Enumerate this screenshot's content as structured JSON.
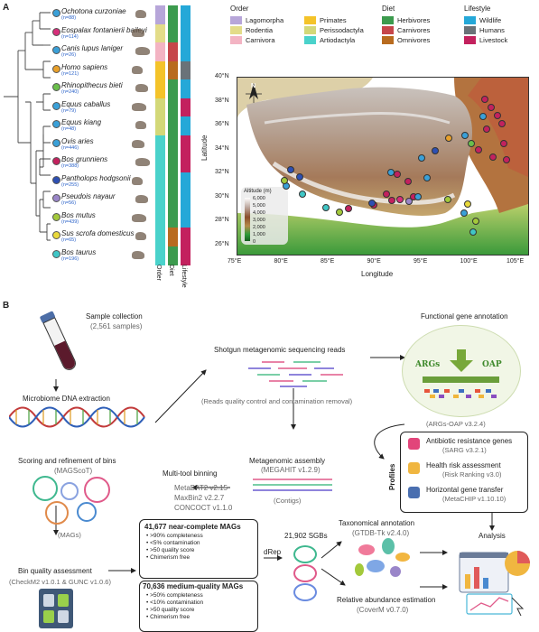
{
  "panelA": {
    "letter": "A",
    "species": [
      {
        "name": "Ochotona curzoniae",
        "count": "(n=88)",
        "order": "#b7a6d9",
        "diet": "#3c9b4e",
        "life": "#25a8d8",
        "dot": "#3aa0d8"
      },
      {
        "name": "Eospalax fontanierii baileyi",
        "count": "(n=114)",
        "order": "#e3dc89",
        "diet": "#3c9b4e",
        "life": "#25a8d8",
        "dot": "#d62f7a"
      },
      {
        "name": "Canis lupus laniger",
        "count": "(n=26)",
        "order": "#f3b4c3",
        "diet": "#c6464a",
        "life": "#25a8d8",
        "dot": "#3aa0d8"
      },
      {
        "name": "Homo sapiens",
        "count": "(n=121)",
        "order": "#f4c329",
        "diet": "#b86b1f",
        "life": "#6a7278",
        "dot": "#e8a02b"
      },
      {
        "name": "Rhinopithecus bieti",
        "count": "(n=240)",
        "order": "#f4c329",
        "diet": "#3c9b4e",
        "life": "#25a8d8",
        "dot": "#6abf4b"
      },
      {
        "name": "Equus caballus",
        "count": "(n=79)",
        "order": "#d3d878",
        "diet": "#3c9b4e",
        "life": "#c3215e",
        "dot": "#3aa0d8"
      },
      {
        "name": "Equus kiang",
        "count": "(n=48)",
        "order": "#d3d878",
        "diet": "#3c9b4e",
        "life": "#25a8d8",
        "dot": "#3aa0d8"
      },
      {
        "name": "Ovis aries",
        "count": "(n=446)",
        "order": "#4ad2cb",
        "diet": "#3c9b4e",
        "life": "#c3215e",
        "dot": "#3aa0d8"
      },
      {
        "name": "Bos grunniens",
        "count": "(n=388)",
        "order": "#4ad2cb",
        "diet": "#3c9b4e",
        "life": "#c3215e",
        "dot": "#c3215e"
      },
      {
        "name": "Pantholops hodgsonii",
        "count": "(n=255)",
        "order": "#4ad2cb",
        "diet": "#3c9b4e",
        "life": "#25a8d8",
        "dot": "#2d4fb3"
      },
      {
        "name": "Pseudois nayaur",
        "count": "(n=56)",
        "order": "#4ad2cb",
        "diet": "#3c9b4e",
        "life": "#25a8d8",
        "dot": "#9a86c9"
      },
      {
        "name": "Bos mutus",
        "count": "(n=439)",
        "order": "#4ad2cb",
        "diet": "#3c9b4e",
        "life": "#25a8d8",
        "dot": "#a3c93b"
      },
      {
        "name": "Sus scrofa domesticus",
        "count": "(n=65)",
        "order": "#4ad2cb",
        "diet": "#b86b1f",
        "life": "#c3215e",
        "dot": "#e9d93b"
      },
      {
        "name": "Bos taurus",
        "count": "(n=196)",
        "order": "#4ad2cb",
        "diet": "#3c9b4e",
        "life": "#c3215e",
        "dot": "#40c6c6"
      }
    ],
    "bar_labels": {
      "order": "Order",
      "diet": "Diet",
      "lifestyle": "Lifestyle"
    },
    "legend": {
      "order_title": "Order",
      "order_items": [
        {
          "label": "Lagomorpha",
          "color": "#b7a6d9"
        },
        {
          "label": "Rodentia",
          "color": "#e3dc89"
        },
        {
          "label": "Carnivora",
          "color": "#f3b4c3"
        },
        {
          "label": "Primates",
          "color": "#f4c329"
        },
        {
          "label": "Perissodactyla",
          "color": "#d3d878"
        },
        {
          "label": "Artiodactyla",
          "color": "#4ad2cb"
        }
      ],
      "diet_title": "Diet",
      "diet_items": [
        {
          "label": "Herbivores",
          "color": "#3c9b4e"
        },
        {
          "label": "Carnivores",
          "color": "#c6464a"
        },
        {
          "label": "Omnivores",
          "color": "#b86b1f"
        }
      ],
      "life_title": "Lifestyle",
      "life_items": [
        {
          "label": "Wildlife",
          "color": "#25a8d8"
        },
        {
          "label": "Humans",
          "color": "#6a7278"
        },
        {
          "label": "Livestock",
          "color": "#c3215e"
        }
      ]
    },
    "map": {
      "y_ticks": [
        "40°N",
        "38°N",
        "36°N",
        "34°N",
        "32°N",
        "30°N",
        "28°N",
        "26°N"
      ],
      "x_ticks": [
        "75°E",
        "80°E",
        "85°E",
        "90°E",
        "95°E",
        "100°E",
        "105°E"
      ],
      "xlabel": "Longitude",
      "ylabel": "Latitude",
      "north": "N",
      "altitude_title": "Altitude (m)",
      "altitude_ticks": [
        "6,000",
        "5,000",
        "4,000",
        "3,000",
        "2,000",
        "1,000",
        "0"
      ]
    }
  },
  "panelB": {
    "letter": "B",
    "sample_title": "Sample collection",
    "sample_count": "(2,561 samples)",
    "dna": "Microbiome DNA extraction",
    "shotgun": "Shotgun metagenomic sequencing reads",
    "qc": "(Reads quality control and contamination removal)",
    "functional": "Functional gene annotation",
    "args": "ARGs",
    "oap": "OAP",
    "args_oap": "(ARGs-OAP v3.2.4)",
    "profiles": "Profiles",
    "prof_items": [
      {
        "title": "Antibiotic resistance genes",
        "sub": "(SARG v3.2.1)"
      },
      {
        "title": "Health risk assessment",
        "sub": "(Risk Ranking v3.0)"
      },
      {
        "title": "Horizontal gene transfer",
        "sub": "(MetaCHIP v1.10.10)"
      }
    ],
    "assembly": "Metagenomic assembly",
    "megahit": "(MEGAHIT v1.2.9)",
    "contigs": "(Contigs)",
    "binning": "Multi-tool binning",
    "binning_tools": [
      "MetaBAT2 v2.15",
      "MaxBin2 v2.2.7",
      "CONCOCT v1.1.0"
    ],
    "scoring": "Scoring and refinement of bins",
    "magscot": "(MAGScoT)",
    "mags": "(MAGs)",
    "binqa": "Bin quality assessment",
    "checkm": "(CheckM2 v1.0.1 & GUNC v1.0.6)",
    "near_title": "41,677 near-complete MAGs",
    "near_items": [
      "• >90% completeness",
      "• <5% contamination",
      "• >50 quality score",
      "• Chimerism free"
    ],
    "medium_title": "70,636 medium-quality MAGs",
    "medium_items": [
      "• >50% completeness",
      "• <10% contamination",
      "• >50 quality score",
      "• Chimerism free"
    ],
    "drep": "dRep",
    "sgbs": "21,902 SGBs",
    "taxo": "Taxonomical annotation",
    "gtdb": "(GTDB-Tk v2.4.0)",
    "relab": "Relative abundance estimation",
    "coverm": "(CoverM v0.7.0)",
    "analysis": "Analysis"
  }
}
